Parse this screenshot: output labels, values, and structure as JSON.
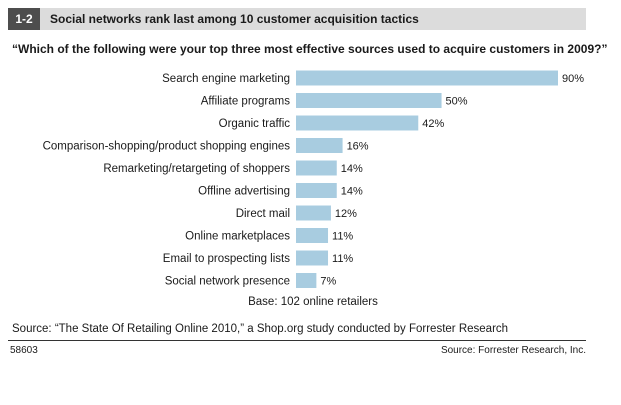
{
  "figure": {
    "number": "1-2",
    "title": "Social networks rank last among 10 customer acquisition tactics",
    "question": "“Which of the following were your top three most effective sources used to acquire customers in 2009?”",
    "base_note": "Base: 102 online retailers",
    "source": "Source: “The State Of Retailing Online 2010,” a Shop.org study conducted by Forrester Research",
    "figure_id": "58603",
    "source_short": "Source: Forrester Research, Inc."
  },
  "colors": {
    "bar": "#a8cce0",
    "header_bg": "#dcdcdc",
    "number_bg": "#4d4d4d"
  },
  "chart_data": {
    "type": "bar",
    "orientation": "horizontal",
    "categories": [
      "Search engine marketing",
      "Affiliate programs",
      "Organic traffic",
      "Comparison-shopping/product shopping engines",
      "Remarketing/retargeting of shoppers",
      "Offline advertising",
      "Direct mail",
      "Online marketplaces",
      "Email to prospecting lists",
      "Social network presence"
    ],
    "values": [
      90,
      50,
      42,
      16,
      14,
      14,
      12,
      11,
      11,
      7
    ],
    "data_labels": [
      "90%",
      "50%",
      "42%",
      "16%",
      "14%",
      "14%",
      "12%",
      "11%",
      "11%",
      "7%"
    ],
    "unit": "%",
    "xlim": [
      0,
      90
    ],
    "grid": false,
    "legend": "none"
  }
}
